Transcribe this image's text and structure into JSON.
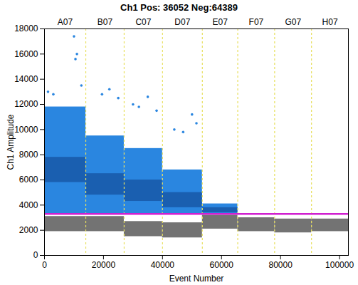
{
  "chart_data": {
    "type": "scatter",
    "title": "Ch1 Pos: 36052 Neg:64389",
    "x_label": "Event Number",
    "y_label": "Ch1 Amplitude",
    "xlim": [
      0,
      103000
    ],
    "xticks": [
      0,
      20000,
      40000,
      60000,
      80000,
      100000
    ],
    "ylim": [
      0,
      18000
    ],
    "yticks": [
      0,
      2000,
      4000,
      6000,
      8000,
      10000,
      12000,
      14000,
      16000,
      18000
    ],
    "threshold": 3300,
    "threshold_color": "#d020d0",
    "divider_color": "#e8e060",
    "positive_color": "#2a86e0",
    "positive_core_color": "#1a5fb0",
    "negative_color": "#5a5a5a",
    "wells": [
      {
        "label": "A07",
        "start": 0,
        "end": 14000,
        "positive": [
          3300,
          11800
        ],
        "positive_core": [
          5800,
          7800
        ],
        "negative": [
          1900,
          3100
        ]
      },
      {
        "label": "B07",
        "start": 14000,
        "end": 27000,
        "positive": [
          3300,
          9500
        ],
        "positive_core": [
          4800,
          6500
        ],
        "negative": [
          1900,
          3100
        ]
      },
      {
        "label": "C07",
        "start": 27000,
        "end": 40000,
        "positive": [
          3300,
          8500
        ],
        "positive_core": [
          4300,
          6000
        ],
        "negative": [
          1500,
          2700
        ]
      },
      {
        "label": "D07",
        "start": 40000,
        "end": 53500,
        "positive": [
          3300,
          6800
        ],
        "positive_core": [
          3800,
          5000
        ],
        "negative": [
          1400,
          2600
        ]
      },
      {
        "label": "E07",
        "start": 53500,
        "end": 65500,
        "positive": [
          3300,
          4100
        ],
        "positive_core": [
          3400,
          3800
        ],
        "negative": [
          2100,
          3200
        ]
      },
      {
        "label": "F07",
        "start": 65500,
        "end": 78000,
        "positive": null,
        "positive_core": null,
        "negative": [
          1900,
          3000
        ]
      },
      {
        "label": "G07",
        "start": 78000,
        "end": 90500,
        "positive": null,
        "positive_core": null,
        "negative": [
          1800,
          2900
        ]
      },
      {
        "label": "H07",
        "start": 90500,
        "end": 103000,
        "positive": null,
        "positive_core": null,
        "negative": [
          1900,
          2900
        ]
      }
    ],
    "outliers": [
      [
        1200,
        13000
      ],
      [
        3000,
        12800
      ],
      [
        10000,
        17400
      ],
      [
        10500,
        15600
      ],
      [
        11000,
        16000
      ],
      [
        12500,
        13500
      ],
      [
        19500,
        12800
      ],
      [
        22000,
        13200
      ],
      [
        25000,
        12500
      ],
      [
        30000,
        12000
      ],
      [
        32000,
        11800
      ],
      [
        35000,
        12600
      ],
      [
        38000,
        11500
      ],
      [
        44000,
        10000
      ],
      [
        47000,
        9800
      ],
      [
        50000,
        11200
      ],
      [
        51500,
        10500
      ]
    ]
  }
}
